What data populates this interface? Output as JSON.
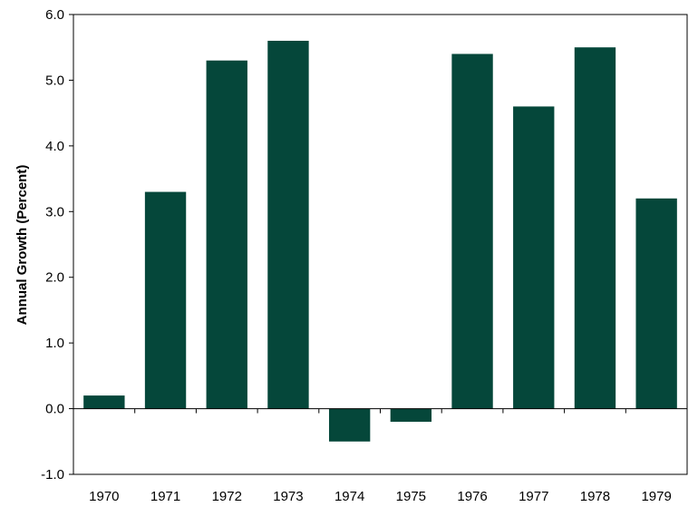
{
  "chart_data": {
    "type": "bar",
    "categories": [
      "1970",
      "1971",
      "1972",
      "1973",
      "1974",
      "1975",
      "1976",
      "1977",
      "1978",
      "1979"
    ],
    "values": [
      0.2,
      3.3,
      5.3,
      5.6,
      -0.5,
      -0.2,
      5.4,
      4.6,
      5.5,
      3.2
    ],
    "ylabel": "Annual Growth (Percent)",
    "xlabel": "",
    "title": "",
    "ylim": [
      -1.0,
      6.0
    ],
    "yticks": [
      "-1.0",
      "0.0",
      "1.0",
      "2.0",
      "3.0",
      "4.0",
      "5.0",
      "6.0"
    ],
    "grid": false,
    "legend": "none",
    "bar_color": "#05473a"
  }
}
